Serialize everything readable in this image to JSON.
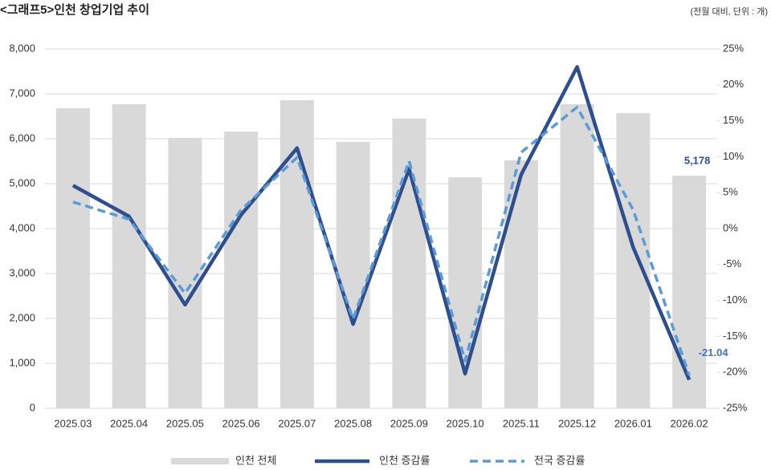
{
  "chart_data": {
    "type": "bar",
    "title": "<그래프5>인천 창업기업 추이",
    "subtitle": "(전월 대비, 단위 : 개)",
    "categories": [
      "2025.03",
      "2025.04",
      "2025.05",
      "2025.06",
      "2025.07",
      "2025.08",
      "2025.09",
      "2025.10",
      "2025.11",
      "2025.12",
      "2026.01",
      "2026.02"
    ],
    "series": [
      {
        "name": "인천 전체",
        "type": "bar",
        "axis": "y",
        "color": "#d9d9d9",
        "values": [
          6680,
          6770,
          6020,
          6160,
          6860,
          5930,
          6450,
          5140,
          5520,
          6770,
          6570,
          5178
        ],
        "value_labels": [
          null,
          null,
          null,
          null,
          null,
          null,
          null,
          null,
          null,
          null,
          null,
          "5,178"
        ]
      },
      {
        "name": "인천 증감률",
        "type": "line",
        "axis": "y2",
        "color": "#2f4e8e",
        "dashed": false,
        "values": [
          6.0,
          1.7,
          -10.6,
          1.9,
          11.2,
          -13.3,
          8.3,
          -20.2,
          7.5,
          22.5,
          -2.6,
          -21.04
        ],
        "value_labels": [
          null,
          null,
          null,
          null,
          null,
          null,
          null,
          null,
          null,
          null,
          null,
          "-21.04"
        ]
      },
      {
        "name": "전국 증감률",
        "type": "line",
        "axis": "y2",
        "color": "#5b9bd5",
        "dashed": true,
        "values": [
          3.7,
          1.3,
          -9.0,
          2.6,
          9.9,
          -12.6,
          9.4,
          -18.4,
          10.6,
          16.9,
          2.6,
          -20.4
        ]
      }
    ],
    "ylim": [
      0,
      8000
    ],
    "yticks": [
      0,
      {
        "value": 1000,
        "label": "1,000"
      },
      {
        "value": 2000,
        "label": "2,000"
      },
      {
        "value": 3000,
        "label": "3,000"
      },
      {
        "value": 4000,
        "label": "4,000"
      },
      {
        "value": 5000,
        "label": "5,000"
      },
      {
        "value": 6000,
        "label": "6,000"
      },
      {
        "value": 7000,
        "label": "7,000"
      },
      {
        "value": 8000,
        "label": "8,000"
      }
    ],
    "y2lim": [
      -25,
      25
    ],
    "y2ticks": [
      {
        "value": -25,
        "label": "-25%"
      },
      {
        "value": -20,
        "label": "-20%"
      },
      {
        "value": -15,
        "label": "-15%"
      },
      {
        "value": -10,
        "label": "-10%"
      },
      {
        "value": -5,
        "label": "-5%"
      },
      {
        "value": 0,
        "label": "0%"
      },
      {
        "value": 5,
        "label": "5%"
      },
      {
        "value": 10,
        "label": "10%"
      },
      {
        "value": 15,
        "label": "15%"
      },
      {
        "value": 20,
        "label": "20%"
      },
      {
        "value": 25,
        "label": "25%"
      }
    ],
    "grid": true,
    "legend": "bottom"
  }
}
